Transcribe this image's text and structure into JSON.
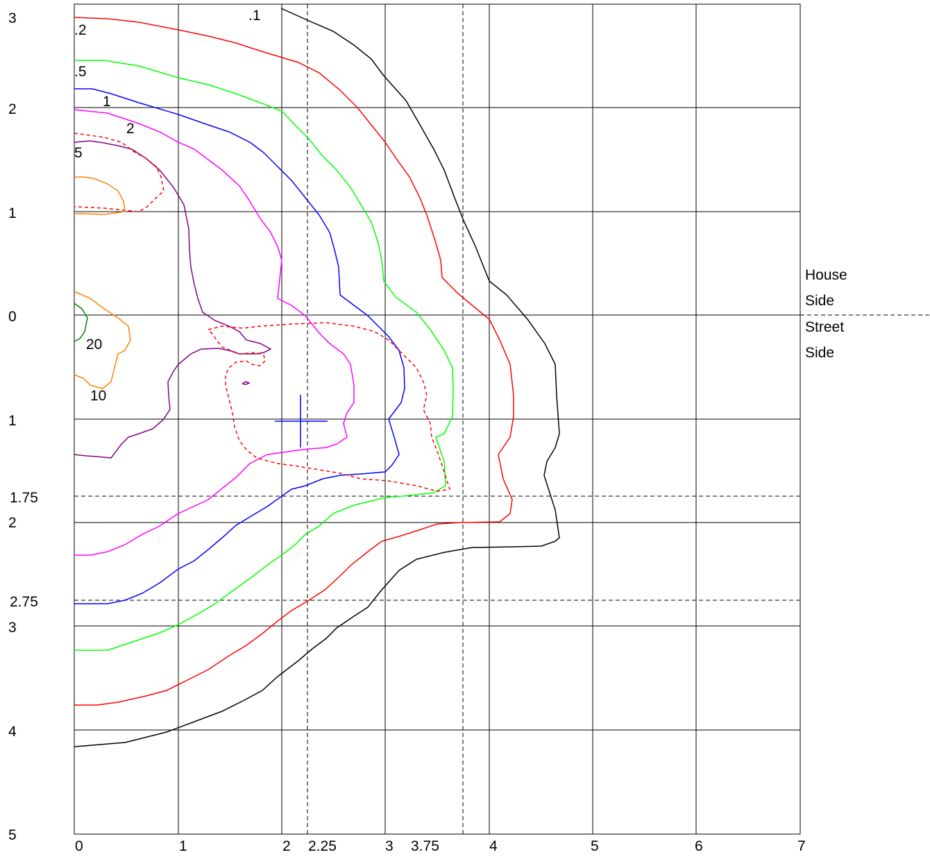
{
  "y_axis_labels": [
    "3",
    "2",
    "1",
    "0",
    "1",
    "1.75",
    "2",
    "2.75",
    "3",
    "4",
    "5"
  ],
  "x_axis_labels": [
    "0",
    "1",
    "2",
    "2.25",
    "3",
    "3.75",
    "4",
    "5",
    "6",
    "7"
  ],
  "side_labels": {
    "house_1": "House",
    "house_2": "Side",
    "street_1": "Street",
    "street_2": "Side"
  },
  "contour_labels": {
    "c01": ".1",
    "c02": ".2",
    "c05": ".5",
    "c1": "1",
    "c2": "2",
    "c5": "5",
    "c10": "10",
    "c20": "20"
  },
  "colors": {
    "grid": "#000000",
    "c01": "#000000",
    "c02": "#ff0000",
    "c05": "#00ff00",
    "c1": "#0000ff",
    "c2": "#ff00ff",
    "c5": "#800080",
    "c10": "#ff8000",
    "c20": "#008000",
    "marker": "#0000ff"
  },
  "chart_data": {
    "type": "contour",
    "x_range": [
      0,
      7
    ],
    "y_range_top_to_bottom": [
      -3,
      5
    ],
    "contour_levels": [
      0.1,
      0.2,
      0.5,
      1,
      2,
      5,
      10,
      20
    ],
    "reference_lines_x": [
      2.25,
      3.75
    ],
    "reference_lines_y": [
      1.75,
      2.75
    ],
    "house_street_boundary_y": 0,
    "marker": {
      "x": 2.17,
      "y": 1.02
    }
  }
}
